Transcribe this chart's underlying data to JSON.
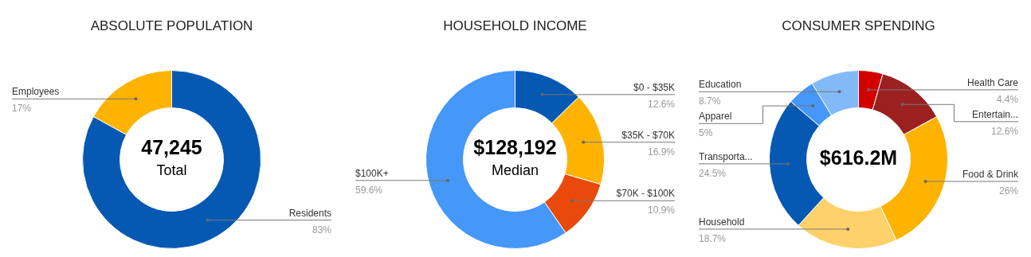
{
  "chart_data": [
    {
      "type": "donut",
      "title": "ABSOLUTE POPULATION",
      "categories": [
        "Residents",
        "Employees"
      ],
      "values": [
        83,
        17
      ],
      "colors": [
        "#0659b3",
        "#fdb300"
      ],
      "value_labels": [
        "83%",
        "17%"
      ],
      "annotations": [
        "47,245",
        "Total"
      ]
    },
    {
      "type": "donut",
      "title": "HOUSEHOLD INCOME",
      "categories": [
        "$0 - $35K",
        "$35K - $70K",
        "$70K - $100K",
        "$100K+"
      ],
      "values": [
        12.6,
        16.9,
        10.9,
        59.6
      ],
      "colors": [
        "#0659b3",
        "#fdb300",
        "#e94a0b",
        "#4597f8"
      ],
      "value_labels": [
        "12.6%",
        "16.9%",
        "10.9%",
        "59.6%"
      ],
      "annotations": [
        "$128,192",
        "Median"
      ]
    },
    {
      "type": "donut",
      "title": "CONSUMER SPENDING",
      "categories": [
        "Health Care",
        "Entertain...",
        "Food & Drink",
        "Household",
        "Transporta...",
        "Apparel",
        "Education"
      ],
      "values": [
        4.4,
        12.6,
        26,
        18.7,
        24.5,
        5,
        8.7
      ],
      "colors": [
        "#d30000",
        "#9b2020",
        "#fdb300",
        "#fed16a",
        "#0659b3",
        "#4597f8",
        "#82baf9"
      ],
      "value_labels": [
        "4.4%",
        "12.6%",
        "26%",
        "18.7%",
        "24.5%",
        "5%",
        "8.7%"
      ],
      "annotations": [
        "$616.2M"
      ]
    }
  ]
}
